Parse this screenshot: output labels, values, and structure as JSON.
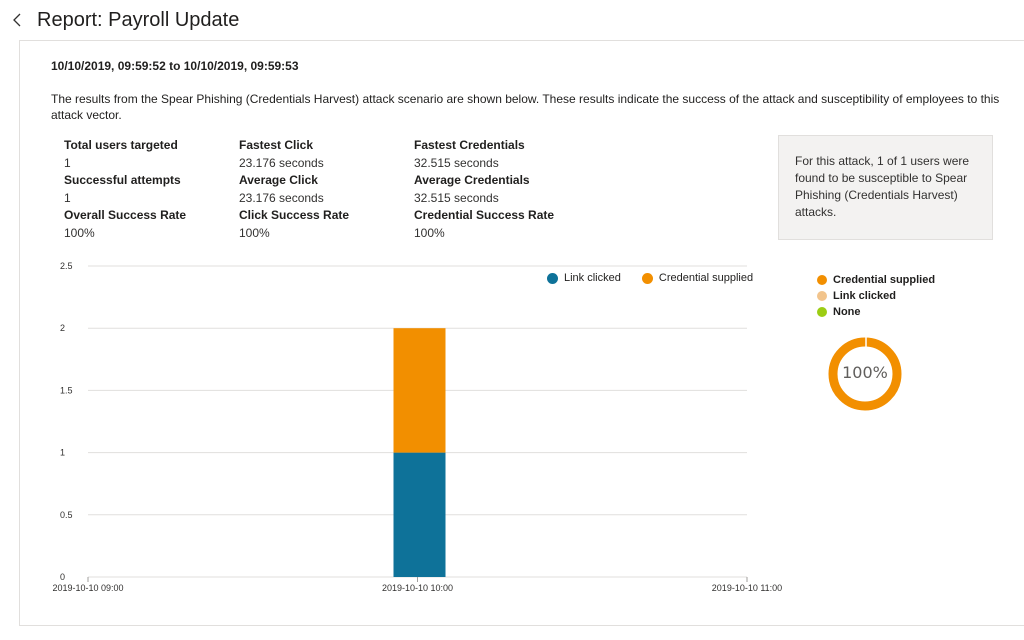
{
  "header": {
    "title": "Report: Payroll Update"
  },
  "report": {
    "date_range": "10/10/2019, 09:59:52 to 10/10/2019, 09:59:53",
    "description": "The results from the Spear Phishing (Credentials Harvest) attack scenario are shown below. These results indicate the success of the attack and susceptibility of employees to this attack vector."
  },
  "stats": {
    "col1": [
      {
        "label": "Total users targeted",
        "value": "1"
      },
      {
        "label": "Successful attempts",
        "value": "1"
      },
      {
        "label": "Overall Success Rate",
        "value": "100%"
      }
    ],
    "col2": [
      {
        "label": "Fastest Click",
        "value": "23.176 seconds"
      },
      {
        "label": "Average Click",
        "value": "23.176 seconds"
      },
      {
        "label": "Click Success Rate",
        "value": "100%"
      }
    ],
    "col3": [
      {
        "label": "Fastest Credentials",
        "value": "32.515 seconds"
      },
      {
        "label": "Average Credentials",
        "value": "32.515 seconds"
      },
      {
        "label": "Credential Success Rate",
        "value": "100%"
      }
    ]
  },
  "info_box": {
    "text": "For this attack, 1 of 1 users were found to be susceptible to Spear Phishing (Credentials Harvest) attacks."
  },
  "colors": {
    "link_clicked": "#0e7299",
    "credential_supplied": "#f28f00",
    "link_clicked_light": "#f2c48c",
    "none": "#9ccd14",
    "gridline": "#e1dfdd"
  },
  "chart_data": [
    {
      "type": "bar",
      "stacked": true,
      "x_ticks": [
        "2019-10-10 09:00",
        "2019-10-10 10:00",
        "2019-10-10 11:00"
      ],
      "y_ticks": [
        "0",
        "0.5",
        "1",
        "1.5",
        "2",
        "2.5"
      ],
      "ylim": [
        0,
        2.5
      ],
      "categories": [
        "2019-10-10 10:00"
      ],
      "series": [
        {
          "name": "Link clicked",
          "values": [
            1
          ],
          "color": "#0e7299"
        },
        {
          "name": "Credential supplied",
          "values": [
            1
          ],
          "color": "#f28f00"
        }
      ],
      "grid": true,
      "legend_position": "top-right"
    },
    {
      "type": "pie",
      "donut": true,
      "center_label": "100%",
      "slices": [
        {
          "name": "Credential supplied",
          "value": 100,
          "color": "#f28f00"
        },
        {
          "name": "Link clicked",
          "value": 0,
          "color": "#f2c48c"
        },
        {
          "name": "None",
          "value": 0,
          "color": "#9ccd14"
        }
      ],
      "legend_position": "top"
    }
  ]
}
